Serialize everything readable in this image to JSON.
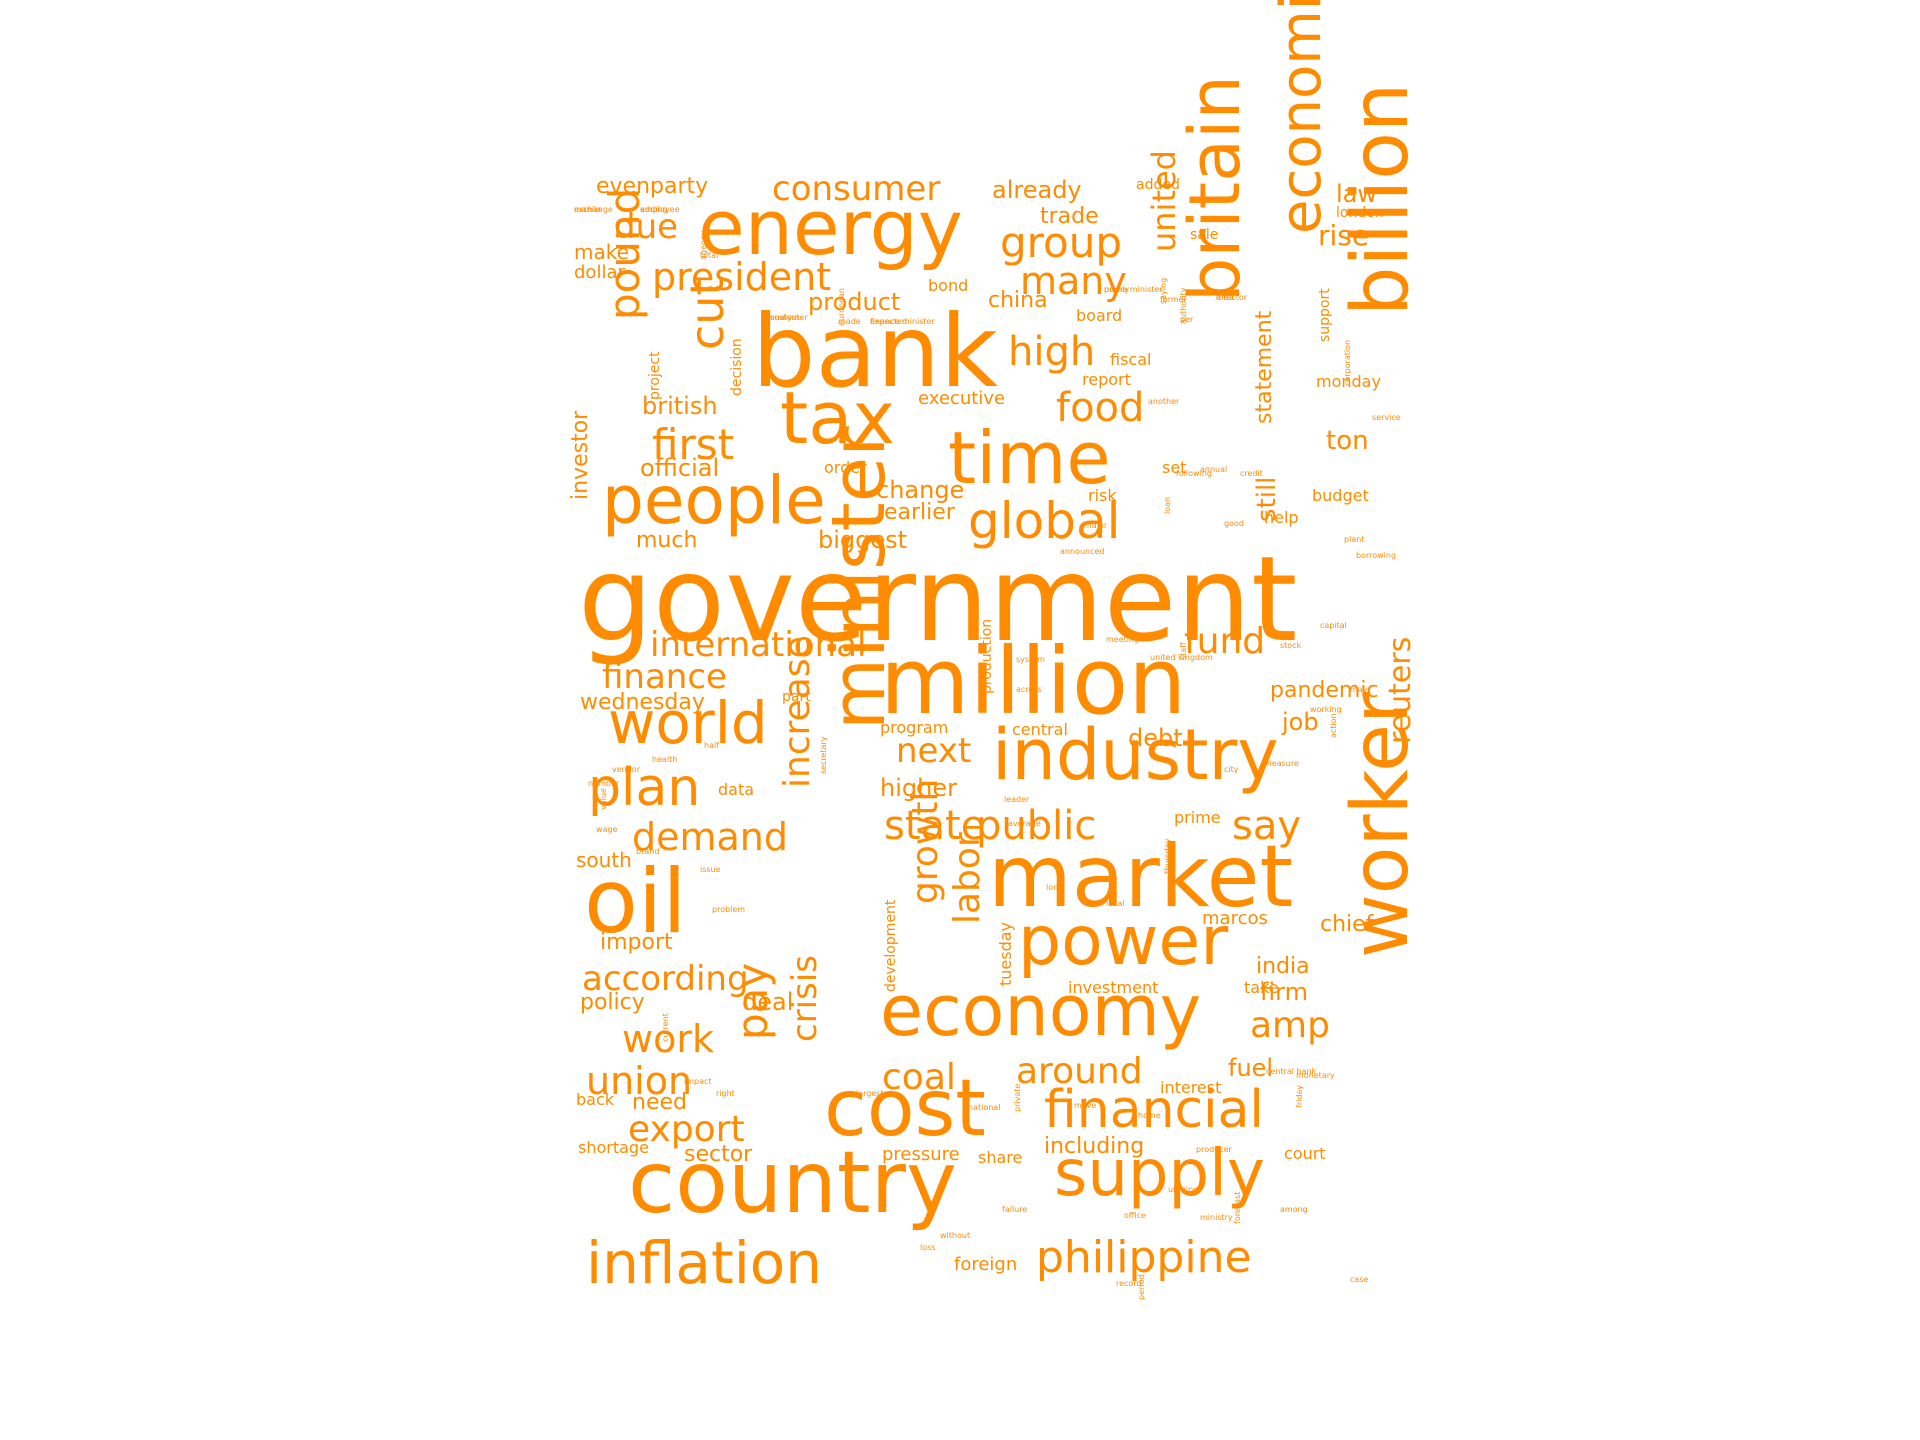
{
  "color": "#ff8c00",
  "words": [
    {
      "id": "government",
      "text": "government"
    },
    {
      "id": "bank",
      "text": "bank"
    },
    {
      "id": "million",
      "text": "million"
    },
    {
      "id": "market",
      "text": "market"
    },
    {
      "id": "country",
      "text": "country"
    },
    {
      "id": "oil",
      "text": "oil"
    },
    {
      "id": "energy",
      "text": "energy"
    },
    {
      "id": "cost",
      "text": "cost"
    },
    {
      "id": "economy",
      "text": "economy"
    },
    {
      "id": "industry",
      "text": "industry"
    },
    {
      "id": "tax",
      "text": "tax"
    },
    {
      "id": "time",
      "text": "time"
    },
    {
      "id": "people",
      "text": "people"
    },
    {
      "id": "power",
      "text": "power"
    },
    {
      "id": "supply",
      "text": "supply"
    },
    {
      "id": "inflation",
      "text": "inflation"
    },
    {
      "id": "world",
      "text": "world"
    },
    {
      "id": "financial",
      "text": "financial"
    },
    {
      "id": "philippine",
      "text": "philippine"
    },
    {
      "id": "global",
      "text": "global"
    },
    {
      "id": "plan",
      "text": "plan"
    },
    {
      "id": "billion",
      "text": "billion"
    },
    {
      "id": "worker",
      "text": "worker"
    },
    {
      "id": "minister",
      "text": "minister"
    },
    {
      "id": "britain",
      "text": "britain"
    },
    {
      "id": "economic",
      "text": "economic"
    },
    {
      "id": "increase",
      "text": "increase"
    },
    {
      "id": "crisis",
      "text": "crisis"
    },
    {
      "id": "pound",
      "text": "pound"
    },
    {
      "id": "cut",
      "text": "cut"
    },
    {
      "id": "reuters",
      "text": "reuters"
    },
    {
      "id": "united",
      "text": "united"
    },
    {
      "id": "pay",
      "text": "pay"
    },
    {
      "id": "growth",
      "text": "growth"
    },
    {
      "id": "labor",
      "text": "labor"
    },
    {
      "id": "consumer",
      "text": "consumer"
    },
    {
      "id": "president",
      "text": "president"
    },
    {
      "id": "group",
      "text": "group"
    },
    {
      "id": "many",
      "text": "many"
    },
    {
      "id": "high",
      "text": "high"
    },
    {
      "id": "food",
      "text": "food"
    },
    {
      "id": "first",
      "text": "first"
    },
    {
      "id": "international",
      "text": "international"
    },
    {
      "id": "fund",
      "text": "fund"
    },
    {
      "id": "finance",
      "text": "finance"
    },
    {
      "id": "state",
      "text": "state"
    },
    {
      "id": "public",
      "text": "public"
    },
    {
      "id": "say",
      "text": "say"
    },
    {
      "id": "demand",
      "text": "demand"
    },
    {
      "id": "according",
      "text": "according"
    },
    {
      "id": "work",
      "text": "work"
    },
    {
      "id": "union",
      "text": "union"
    },
    {
      "id": "export",
      "text": "export"
    },
    {
      "id": "around",
      "text": "around"
    },
    {
      "id": "coal",
      "text": "coal"
    },
    {
      "id": "amp",
      "text": "amp"
    },
    {
      "id": "next",
      "text": "next"
    },
    {
      "id": "due",
      "text": "due"
    },
    {
      "id": "evenparty",
      "text": "evenparty"
    },
    {
      "id": "already",
      "text": "already"
    },
    {
      "id": "trade",
      "text": "trade"
    },
    {
      "id": "law",
      "text": "law"
    },
    {
      "id": "rise",
      "text": "rise"
    },
    {
      "id": "make",
      "text": "make"
    },
    {
      "id": "product",
      "text": "product"
    },
    {
      "id": "china",
      "text": "china"
    },
    {
      "id": "british",
      "text": "british"
    },
    {
      "id": "official",
      "text": "official"
    },
    {
      "id": "change",
      "text": "change"
    },
    {
      "id": "earlier",
      "text": "earlier"
    },
    {
      "id": "biggest",
      "text": "biggest"
    },
    {
      "id": "much",
      "text": "much"
    },
    {
      "id": "ton",
      "text": "ton"
    },
    {
      "id": "budget",
      "text": "budget"
    },
    {
      "id": "executive",
      "text": "executive"
    },
    {
      "id": "wednesday",
      "text": "wednesday"
    },
    {
      "id": "pandemic",
      "text": "pandemic"
    },
    {
      "id": "job",
      "text": "job"
    },
    {
      "id": "debt",
      "text": "debt"
    },
    {
      "id": "higher",
      "text": "higher"
    },
    {
      "id": "import",
      "text": "import"
    },
    {
      "id": "policy",
      "text": "policy"
    },
    {
      "id": "deal",
      "text": "deal"
    },
    {
      "id": "south",
      "text": "south"
    },
    {
      "id": "chief",
      "text": "chief"
    },
    {
      "id": "india",
      "text": "india"
    },
    {
      "id": "firm",
      "text": "firm"
    },
    {
      "id": "fuel",
      "text": "fuel"
    },
    {
      "id": "need",
      "text": "need"
    },
    {
      "id": "sector",
      "text": "sector"
    },
    {
      "id": "including",
      "text": "including"
    },
    {
      "id": "pressure",
      "text": "pressure"
    },
    {
      "id": "foreign",
      "text": "foreign"
    },
    {
      "id": "investor",
      "text": "investor"
    },
    {
      "id": "statement",
      "text": "statement"
    },
    {
      "id": "still",
      "text": "still"
    },
    {
      "id": "investment",
      "text": "investment"
    },
    {
      "id": "interest",
      "text": "interest"
    },
    {
      "id": "take",
      "text": "take"
    },
    {
      "id": "central",
      "text": "central"
    },
    {
      "id": "program",
      "text": "program"
    },
    {
      "id": "data",
      "text": "data"
    },
    {
      "id": "prime",
      "text": "prime"
    },
    {
      "id": "marcos",
      "text": "marcos"
    },
    {
      "id": "dollar",
      "text": "dollar"
    },
    {
      "id": "bond",
      "text": "bond"
    },
    {
      "id": "board",
      "text": "board"
    },
    {
      "id": "fiscal",
      "text": "fiscal"
    },
    {
      "id": "report",
      "text": "report"
    },
    {
      "id": "monday",
      "text": "monday"
    },
    {
      "id": "order",
      "text": "order"
    },
    {
      "id": "risk",
      "text": "risk"
    },
    {
      "id": "set",
      "text": "set"
    },
    {
      "id": "help",
      "text": "help"
    },
    {
      "id": "court",
      "text": "court"
    },
    {
      "id": "share",
      "text": "share"
    },
    {
      "id": "back",
      "text": "back"
    },
    {
      "id": "shortage",
      "text": "shortage"
    },
    {
      "id": "london",
      "text": "london"
    },
    {
      "id": "added",
      "text": "added"
    },
    {
      "id": "sale",
      "text": "sale"
    },
    {
      "id": "support",
      "text": "support"
    },
    {
      "id": "tuesday",
      "text": "tuesday"
    },
    {
      "id": "development",
      "text": "development"
    },
    {
      "id": "production",
      "text": "production"
    },
    {
      "id": "part",
      "text": "part"
    },
    {
      "id": "decision",
      "text": "decision"
    },
    {
      "id": "project",
      "text": "project"
    },
    {
      "id": "exchange",
      "text": "exchange"
    },
    {
      "id": "employee",
      "text": "employee"
    },
    {
      "id": "total",
      "text": "total"
    },
    {
      "id": "analyst",
      "text": "analyst"
    },
    {
      "id": "european",
      "text": "european"
    },
    {
      "id": "finance_minister",
      "text": "finance minister"
    },
    {
      "id": "prime_minister",
      "text": "prime minister"
    },
    {
      "id": "former",
      "text": "former"
    },
    {
      "id": "director",
      "text": "director"
    },
    {
      "id": "authority",
      "text": "authority"
    },
    {
      "id": "another",
      "text": "another"
    },
    {
      "id": "following",
      "text": "following"
    },
    {
      "id": "annual",
      "text": "annual"
    },
    {
      "id": "credit",
      "text": "credit"
    },
    {
      "id": "corporation",
      "text": "corporation"
    },
    {
      "id": "service",
      "text": "service"
    },
    {
      "id": "plant",
      "text": "plant"
    },
    {
      "id": "borrowing",
      "text": "borrowing"
    },
    {
      "id": "good",
      "text": "good"
    },
    {
      "id": "loan",
      "text": "loan"
    },
    {
      "id": "major",
      "text": "major"
    },
    {
      "id": "announced",
      "text": "announced"
    },
    {
      "id": "meeting",
      "text": "meeting"
    },
    {
      "id": "united_kingdom",
      "text": "united kingdom"
    },
    {
      "id": "staff",
      "text": "staff"
    },
    {
      "id": "system",
      "text": "system"
    },
    {
      "id": "across",
      "text": "across"
    },
    {
      "id": "stock",
      "text": "stock"
    },
    {
      "id": "working",
      "text": "working"
    },
    {
      "id": "action",
      "text": "action"
    },
    {
      "id": "may",
      "text": "may"
    },
    {
      "id": "capital",
      "text": "capital"
    },
    {
      "id": "measure",
      "text": "measure"
    },
    {
      "id": "city",
      "text": "city"
    },
    {
      "id": "thursday",
      "text": "thursday"
    },
    {
      "id": "local",
      "text": "local"
    },
    {
      "id": "long",
      "text": "long"
    },
    {
      "id": "average",
      "text": "average"
    },
    {
      "id": "leader",
      "text": "leader"
    },
    {
      "id": "secretary",
      "text": "secretary"
    },
    {
      "id": "half",
      "text": "half"
    },
    {
      "id": "health",
      "text": "health"
    },
    {
      "id": "vendor",
      "text": "vendor"
    },
    {
      "id": "number",
      "text": "number"
    },
    {
      "id": "value",
      "text": "value"
    },
    {
      "id": "wage",
      "text": "wage"
    },
    {
      "id": "brand",
      "text": "brand"
    },
    {
      "id": "issue",
      "text": "issue"
    },
    {
      "id": "problem",
      "text": "problem"
    },
    {
      "id": "current",
      "text": "current"
    },
    {
      "id": "impact",
      "text": "impact"
    },
    {
      "id": "right",
      "text": "right"
    },
    {
      "id": "largest",
      "text": "largest"
    },
    {
      "id": "national",
      "text": "national"
    },
    {
      "id": "private",
      "text": "private"
    },
    {
      "id": "move",
      "text": "move"
    },
    {
      "id": "home",
      "text": "home"
    },
    {
      "id": "central_bank",
      "text": "central bank"
    },
    {
      "id": "monetary",
      "text": "monetary"
    },
    {
      "id": "friday",
      "text": "friday"
    },
    {
      "id": "producer",
      "text": "producer"
    },
    {
      "id": "ukraine",
      "text": "ukraine"
    },
    {
      "id": "office",
      "text": "office"
    },
    {
      "id": "ministry",
      "text": "ministry"
    },
    {
      "id": "forecast",
      "text": "forecast"
    },
    {
      "id": "among",
      "text": "among"
    },
    {
      "id": "failure",
      "text": "failure"
    },
    {
      "id": "without",
      "text": "without"
    },
    {
      "id": "loss",
      "text": "loss"
    },
    {
      "id": "period",
      "text": "period"
    },
    {
      "id": "record",
      "text": "record"
    },
    {
      "id": "case",
      "text": "case"
    },
    {
      "id": "manila",
      "text": "manila"
    },
    {
      "id": "adding",
      "text": "adding"
    },
    {
      "id": "agency",
      "text": "agency"
    },
    {
      "id": "customer",
      "text": "customer"
    },
    {
      "id": "made",
      "text": "made"
    },
    {
      "id": "expected",
      "text": "expected"
    },
    {
      "id": "nearly",
      "text": "nearly"
    },
    {
      "id": "saying",
      "text": "saying"
    },
    {
      "id": "area",
      "text": "area"
    },
    {
      "id": "per",
      "text": "per"
    }
  ]
}
